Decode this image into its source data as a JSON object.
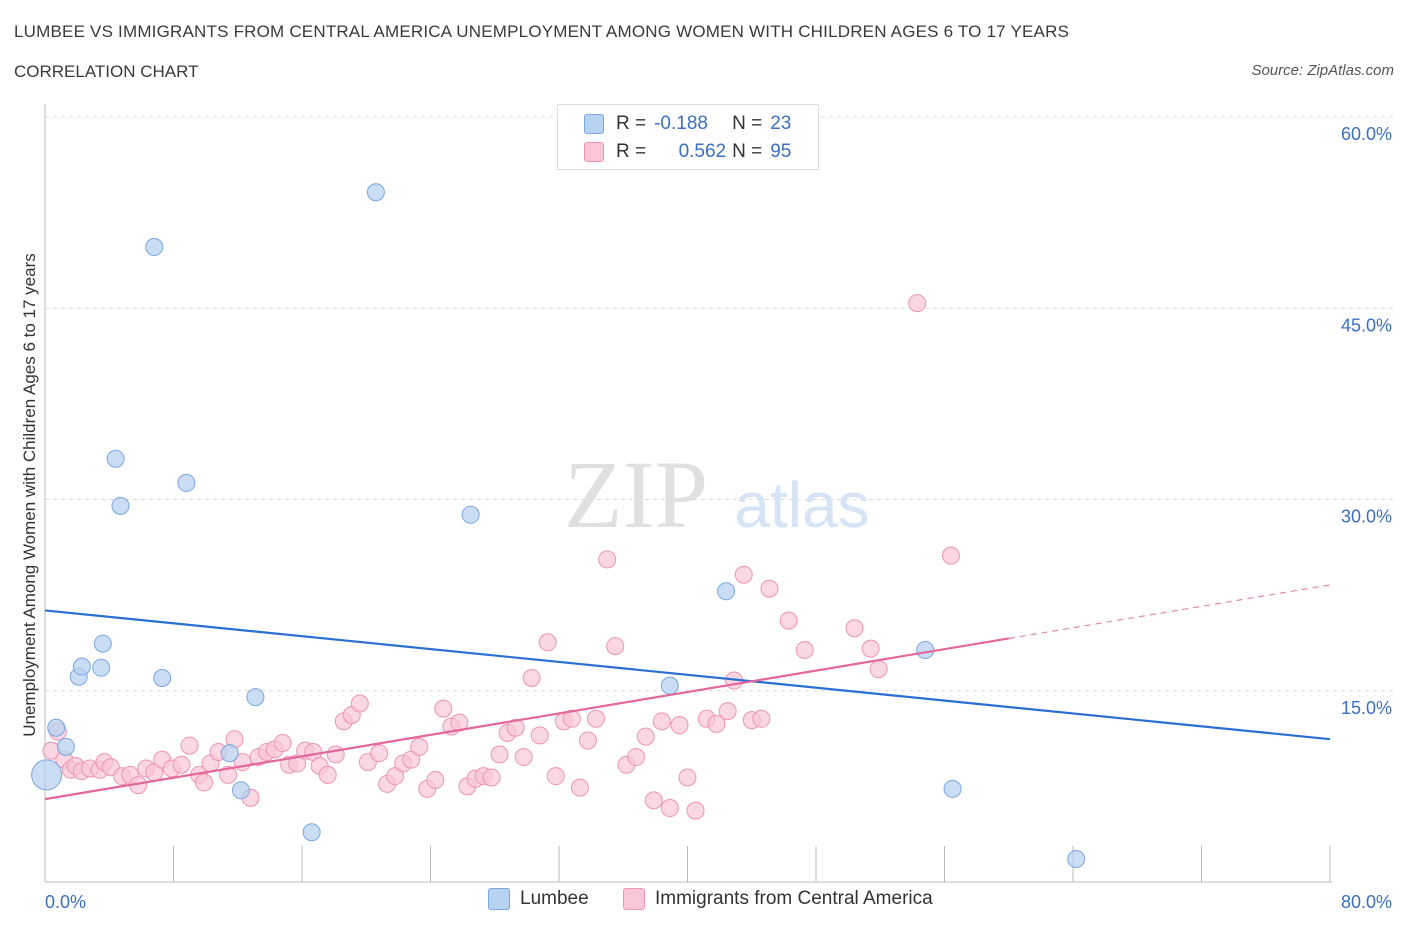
{
  "header": {
    "title": "LUMBEE VS IMMIGRANTS FROM CENTRAL AMERICA UNEMPLOYMENT AMONG WOMEN WITH CHILDREN AGES 6 TO 17 YEARS",
    "subtitle": "CORRELATION CHART",
    "source": "Source: ZipAtlas.com"
  },
  "watermark": {
    "zip": "ZIP",
    "atlas": "atlas"
  },
  "legend_top": {
    "rows": [
      {
        "r_label": "R =",
        "r_value": "-0.188",
        "n_label": "N =",
        "n_value": "23"
      },
      {
        "r_label": "R =",
        "r_value": "0.562",
        "n_label": "N =",
        "n_value": "95"
      }
    ]
  },
  "legend_bottom": {
    "items": [
      "Lumbee",
      "Immigrants from Central America"
    ]
  },
  "colors": {
    "lumbee_fill": "#b8d2f2",
    "lumbee_stroke": "#7aa6e0",
    "lumbee_line": "#2a6fd1",
    "immig_fill": "#f8c6d6",
    "immig_stroke": "#ee94b2",
    "immig_line": "#e2679a",
    "axis_label": "#3a6fc4",
    "grid": "#d9d9d9"
  },
  "chart_data": {
    "type": "scatter",
    "title": "LUMBEE VS IMMIGRANTS FROM CENTRAL AMERICA UNEMPLOYMENT AMONG WOMEN WITH CHILDREN AGES 6 TO 17 YEARS",
    "xlabel": "",
    "ylabel": "Unemployment Among Women with Children Ages 6 to 17 years",
    "xlim": [
      0,
      80
    ],
    "ylim": [
      0,
      60
    ],
    "x_tick_labels": [
      "0.0%",
      "80.0%"
    ],
    "y_ticks": [
      15,
      30,
      45,
      60
    ],
    "y_tick_labels": [
      "15.0%",
      "30.0%",
      "45.0%",
      "60.0%"
    ],
    "grid": true,
    "legend_position": "top-center",
    "series": [
      {
        "name": "Lumbee",
        "R": -0.188,
        "N": 23,
        "trend": {
          "x": [
            0,
            80
          ],
          "y": [
            21.3,
            11.2
          ]
        },
        "points": [
          [
            0.1,
            8.4
          ],
          [
            0.7,
            12.1
          ],
          [
            1.3,
            10.6
          ],
          [
            2.1,
            16.1
          ],
          [
            2.3,
            16.9
          ],
          [
            3.5,
            16.8
          ],
          [
            3.6,
            18.7
          ],
          [
            4.4,
            33.2
          ],
          [
            4.7,
            29.5
          ],
          [
            6.8,
            49.8
          ],
          [
            7.3,
            16.0
          ],
          [
            8.8,
            31.3
          ],
          [
            11.5,
            10.1
          ],
          [
            12.2,
            7.2
          ],
          [
            13.1,
            14.5
          ],
          [
            16.6,
            3.9
          ],
          [
            20.6,
            54.1
          ],
          [
            26.5,
            28.8
          ],
          [
            38.9,
            15.4
          ],
          [
            42.4,
            22.8
          ],
          [
            54.8,
            18.2
          ],
          [
            56.5,
            7.3
          ],
          [
            64.2,
            1.8
          ]
        ]
      },
      {
        "name": "Immigrants from Central America",
        "R": 0.562,
        "N": 95,
        "trend": {
          "x": [
            0,
            60
          ],
          "y": [
            6.5,
            19.1
          ]
        },
        "trend_dashed": {
          "x": [
            60,
            80
          ],
          "y": [
            19.1,
            23.3
          ]
        },
        "points": [
          [
            0.4,
            10.3
          ],
          [
            0.8,
            11.8
          ],
          [
            1.2,
            9.6
          ],
          [
            1.6,
            8.8
          ],
          [
            1.9,
            9.1
          ],
          [
            2.3,
            8.7
          ],
          [
            2.8,
            8.9
          ],
          [
            3.4,
            8.8
          ],
          [
            3.7,
            9.4
          ],
          [
            4.1,
            9.0
          ],
          [
            4.8,
            8.3
          ],
          [
            5.3,
            8.4
          ],
          [
            5.8,
            7.6
          ],
          [
            6.3,
            8.9
          ],
          [
            6.8,
            8.6
          ],
          [
            7.3,
            9.6
          ],
          [
            7.9,
            8.9
          ],
          [
            8.5,
            9.2
          ],
          [
            9.0,
            10.7
          ],
          [
            9.6,
            8.4
          ],
          [
            9.9,
            7.8
          ],
          [
            10.3,
            9.3
          ],
          [
            10.8,
            10.2
          ],
          [
            11.4,
            8.4
          ],
          [
            11.8,
            11.2
          ],
          [
            12.3,
            9.4
          ],
          [
            12.8,
            6.6
          ],
          [
            13.3,
            9.8
          ],
          [
            13.8,
            10.2
          ],
          [
            14.3,
            10.4
          ],
          [
            14.8,
            10.9
          ],
          [
            15.2,
            9.2
          ],
          [
            15.7,
            9.3
          ],
          [
            16.2,
            10.3
          ],
          [
            16.7,
            10.2
          ],
          [
            17.1,
            9.1
          ],
          [
            17.6,
            8.4
          ],
          [
            18.1,
            10.0
          ],
          [
            18.6,
            12.6
          ],
          [
            19.1,
            13.1
          ],
          [
            19.6,
            14.0
          ],
          [
            20.1,
            9.4
          ],
          [
            20.8,
            10.1
          ],
          [
            21.3,
            7.7
          ],
          [
            21.8,
            8.3
          ],
          [
            22.3,
            9.3
          ],
          [
            22.8,
            9.6
          ],
          [
            23.3,
            10.6
          ],
          [
            23.8,
            7.3
          ],
          [
            24.3,
            8.0
          ],
          [
            24.8,
            13.6
          ],
          [
            25.3,
            12.2
          ],
          [
            25.8,
            12.5
          ],
          [
            26.3,
            7.5
          ],
          [
            26.8,
            8.1
          ],
          [
            27.3,
            8.3
          ],
          [
            27.8,
            8.2
          ],
          [
            28.3,
            10.0
          ],
          [
            28.8,
            11.7
          ],
          [
            29.3,
            12.1
          ],
          [
            29.8,
            9.8
          ],
          [
            30.3,
            16.0
          ],
          [
            30.8,
            11.5
          ],
          [
            31.3,
            18.8
          ],
          [
            31.8,
            8.3
          ],
          [
            32.3,
            12.6
          ],
          [
            32.8,
            12.8
          ],
          [
            33.3,
            7.4
          ],
          [
            33.8,
            11.1
          ],
          [
            34.3,
            12.8
          ],
          [
            35.0,
            25.3
          ],
          [
            35.5,
            18.5
          ],
          [
            36.2,
            9.2
          ],
          [
            36.8,
            9.8
          ],
          [
            37.4,
            11.4
          ],
          [
            37.9,
            6.4
          ],
          [
            38.4,
            12.6
          ],
          [
            38.9,
            5.8
          ],
          [
            39.5,
            12.3
          ],
          [
            40.0,
            8.2
          ],
          [
            40.5,
            5.6
          ],
          [
            41.2,
            12.8
          ],
          [
            41.8,
            12.4
          ],
          [
            42.5,
            13.4
          ],
          [
            42.9,
            15.8
          ],
          [
            43.5,
            24.1
          ],
          [
            44.0,
            12.7
          ],
          [
            44.6,
            12.8
          ],
          [
            45.1,
            23.0
          ],
          [
            46.3,
            20.5
          ],
          [
            47.3,
            18.2
          ],
          [
            50.4,
            19.9
          ],
          [
            51.4,
            18.3
          ],
          [
            51.9,
            16.7
          ],
          [
            54.3,
            45.4
          ],
          [
            56.4,
            25.6
          ]
        ]
      }
    ]
  }
}
